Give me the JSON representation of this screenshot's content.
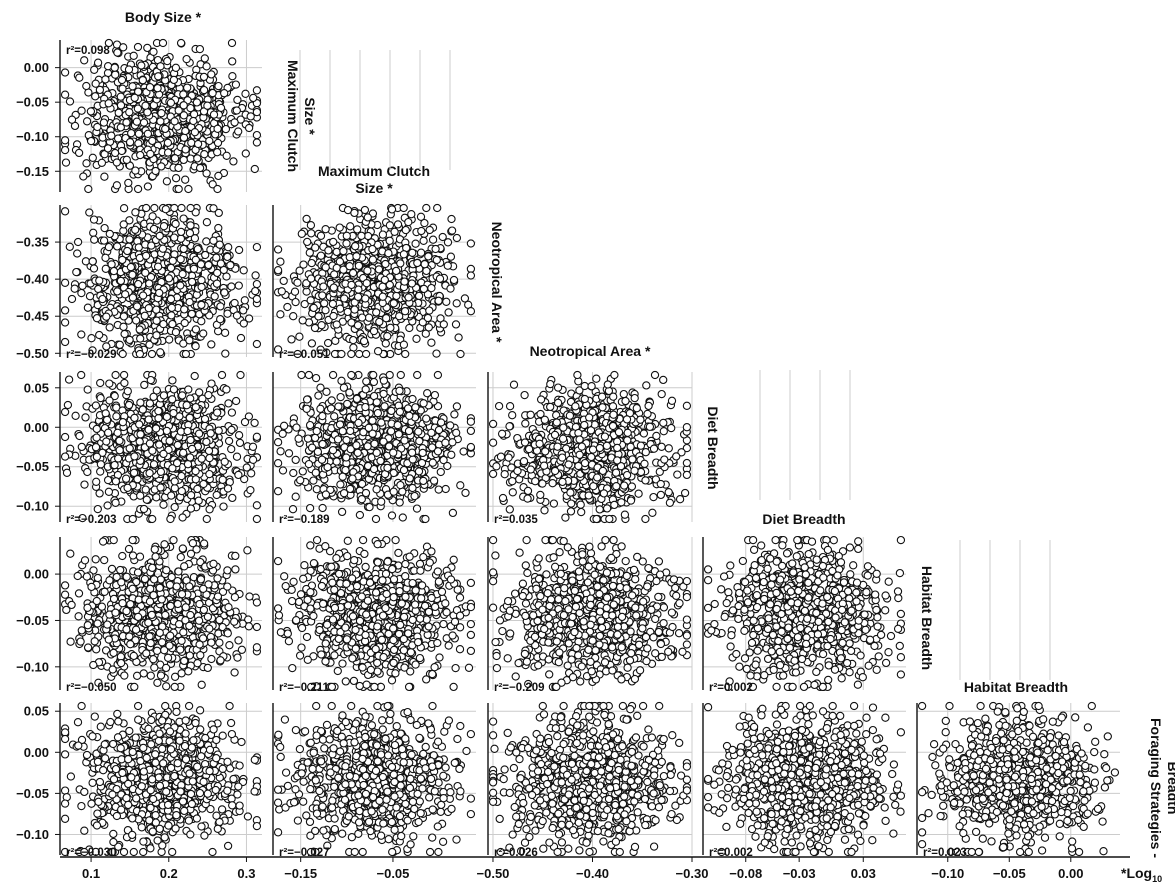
{
  "chart_data": {
    "type": "scatter",
    "variables": [
      {
        "key": "body",
        "label": "Body Size *",
        "row_label": "",
        "ticks": [
          0.1,
          0.2,
          0.3
        ],
        "tick_text": [
          "0.1",
          "0.2",
          "0.3"
        ],
        "range": [
          0.06,
          0.32
        ]
      },
      {
        "key": "clutch",
        "label": "Maximum Clutch Size *",
        "row_label": "Maximum Clutch Size *",
        "ticks": [
          0.0,
          -0.05,
          -0.1,
          -0.15
        ],
        "tick_text": [
          "0.00",
          "−0.05",
          "−0.10",
          "−0.15"
        ],
        "range": [
          -0.18,
          0.04
        ]
      },
      {
        "key": "area",
        "label": "Neotropical Area *",
        "row_label": "Neotropical Area *",
        "ticks": [
          -0.35,
          -0.4,
          -0.45,
          -0.5
        ],
        "tick_text": [
          "−0.35",
          "−0.40",
          "−0.45",
          "−0.50"
        ],
        "range": [
          -0.505,
          -0.3
        ]
      },
      {
        "key": "diet",
        "label": "Diet Breadth",
        "row_label": "Diet Breadth",
        "ticks": [
          0.05,
          0.0,
          -0.05,
          -0.1
        ],
        "tick_text": [
          "0.05",
          "0.00",
          "−0.05",
          "−0.10"
        ],
        "range": [
          -0.12,
          0.07
        ]
      },
      {
        "key": "habitat",
        "label": "Habitat Breadth",
        "row_label": "Habitat Breadth",
        "ticks": [
          0.0,
          -0.05,
          -0.1
        ],
        "tick_text": [
          "0.00",
          "−0.05",
          "−0.10"
        ],
        "range": [
          -0.125,
          0.04
        ]
      },
      {
        "key": "forage",
        "label": "",
        "row_label": "Foraging Strategies - Breadth",
        "ticks": [
          0.05,
          0.0,
          -0.05,
          -0.1
        ],
        "tick_text": [
          "0.05",
          "0.00",
          "−0.05",
          "−0.10"
        ],
        "range": [
          -0.125,
          0.06
        ]
      }
    ],
    "column_ticks": [
      {
        "ticks": [
          0.1,
          0.2,
          0.3
        ],
        "tick_text": [
          "0.1",
          "0.2",
          "0.3"
        ],
        "range": [
          0.06,
          0.32
        ]
      },
      {
        "ticks": [
          -0.15,
          -0.05
        ],
        "tick_text": [
          "−0.15",
          "−0.05"
        ],
        "range": [
          -0.18,
          0.04
        ]
      },
      {
        "ticks": [
          -0.5,
          -0.4,
          -0.3
        ],
        "tick_text": [
          "−0.50",
          "−0.40",
          "−0.30"
        ],
        "range": [
          -0.505,
          -0.3
        ]
      },
      {
        "ticks": [
          -0.08,
          -0.03,
          0.03
        ],
        "tick_text": [
          "−0.08",
          "−0.03",
          "0.03"
        ],
        "range": [
          -0.12,
          0.07
        ]
      },
      {
        "ticks": [
          -0.1,
          -0.05,
          0.0
        ],
        "tick_text": [
          "−0.10",
          "−0.05",
          "0.00"
        ],
        "range": [
          -0.125,
          0.04
        ]
      }
    ],
    "panels": [
      {
        "row": 1,
        "col": 0,
        "r2": "r²=0.098",
        "r2_pos": "top-left"
      },
      {
        "row": 2,
        "col": 0,
        "r2": "r²=−0.029",
        "r2_pos": "bottom-left"
      },
      {
        "row": 2,
        "col": 1,
        "r2": "r²=−0.051",
        "r2_pos": "bottom-left"
      },
      {
        "row": 3,
        "col": 0,
        "r2": "r²=−0.203",
        "r2_pos": "bottom-left"
      },
      {
        "row": 3,
        "col": 1,
        "r2": "r²=−0.189",
        "r2_pos": "bottom-left"
      },
      {
        "row": 3,
        "col": 2,
        "r2": "r²=0.035",
        "r2_pos": "bottom-left"
      },
      {
        "row": 4,
        "col": 0,
        "r2": "r²=−0.050",
        "r2_pos": "bottom-left"
      },
      {
        "row": 4,
        "col": 1,
        "r2": "r²=−0.211",
        "r2_pos": "bottom-left"
      },
      {
        "row": 4,
        "col": 2,
        "r2": "r²=−0.209",
        "r2_pos": "bottom-left"
      },
      {
        "row": 4,
        "col": 3,
        "r2": "r²=0.002",
        "r2_pos": "bottom-left"
      },
      {
        "row": 5,
        "col": 0,
        "r2": "r²=−0.030",
        "r2_pos": "bottom-left"
      },
      {
        "row": 5,
        "col": 1,
        "r2": "r²=−0.027",
        "r2_pos": "bottom-left"
      },
      {
        "row": 5,
        "col": 2,
        "r2": "r²=0.026",
        "r2_pos": "bottom-left"
      },
      {
        "row": 5,
        "col": 3,
        "r2": "r²=0.002",
        "r2_pos": "bottom-left"
      },
      {
        "row": 5,
        "col": 4,
        "r2": "r²=0.023",
        "r2_pos": "bottom-left"
      }
    ],
    "points_per_panel": 900,
    "footnote": "*Log",
    "footnote_sub": "10",
    "grid": true
  },
  "colors": {
    "point_fill": "#ffffff",
    "point_stroke": "#111111",
    "grid": "#cccccc",
    "axis": "#111111"
  }
}
